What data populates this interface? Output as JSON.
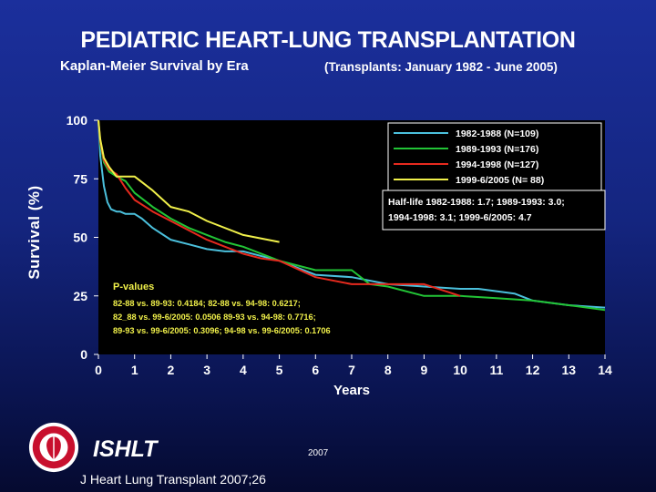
{
  "header": {
    "title": "PEDIATRIC HEART-LUNG TRANSPLANTATION",
    "subtitle": "Kaplan-Meier Survival by Era",
    "subtitle_note": "(Transplants: January 1982 - June 2005)"
  },
  "chart_data": {
    "type": "line",
    "ylabel": "Survival (%)",
    "xlabel": "Years",
    "xlim": [
      0,
      14
    ],
    "ylim": [
      0,
      100
    ],
    "x_ticks": [
      "0",
      "1",
      "2",
      "3",
      "4",
      "5",
      "6",
      "7",
      "8",
      "9",
      "10",
      "11",
      "12",
      "13",
      "14"
    ],
    "y_ticks": [
      {
        "value": 0,
        "label": "0"
      },
      {
        "value": 25,
        "label": "25"
      },
      {
        "value": 50,
        "label": "50"
      },
      {
        "value": 75,
        "label": "75"
      },
      {
        "value": 100,
        "label": "100"
      }
    ],
    "legend_position": "top-right",
    "series": [
      {
        "name": "1982-1988 (N=109)",
        "color": "#4bc0dc",
        "x": [
          0,
          0.05,
          0.15,
          0.25,
          0.35,
          0.5,
          0.6,
          0.75,
          1,
          1.2,
          1.5,
          2,
          2.5,
          3,
          3.5,
          4,
          5,
          6,
          7,
          8,
          9,
          10,
          10.5,
          11,
          11.5,
          12,
          13,
          14
        ],
        "y": [
          100,
          85,
          72,
          65,
          62,
          61,
          61,
          60,
          60,
          58,
          54,
          49,
          47,
          45,
          44,
          44,
          40,
          34,
          33,
          30,
          29,
          28,
          28,
          27,
          26,
          23,
          21,
          20
        ]
      },
      {
        "name": "1989-1993 (N=176)",
        "color": "#22c436",
        "x": [
          0,
          0.05,
          0.15,
          0.3,
          0.5,
          0.75,
          1,
          1.5,
          2,
          2.5,
          3,
          3.5,
          4,
          5,
          6,
          7,
          7.5,
          8,
          9,
          10,
          11,
          12,
          13,
          14
        ],
        "y": [
          100,
          90,
          82,
          78,
          76,
          74,
          69,
          63,
          58,
          54,
          51,
          48,
          46,
          40,
          36,
          36,
          30,
          29,
          25,
          25,
          24,
          23,
          21,
          19
        ]
      },
      {
        "name": "1994-1998 (N=127)",
        "color": "#e62a1e",
        "x": [
          0,
          0.05,
          0.15,
          0.3,
          0.5,
          0.75,
          1,
          1.5,
          2,
          3,
          4,
          4.5,
          5,
          6,
          7,
          8,
          9,
          10
        ],
        "y": [
          100,
          91,
          83,
          79,
          77,
          71,
          66,
          61,
          57,
          49,
          43,
          41,
          40,
          33,
          30,
          30,
          30,
          25
        ]
      },
      {
        "name": "1999-6/2005 (N= 88)",
        "color": "#f0f04a",
        "x": [
          0,
          0.05,
          0.15,
          0.3,
          0.5,
          0.75,
          1,
          1.5,
          2,
          2.5,
          3,
          4,
          5
        ],
        "y": [
          100,
          92,
          84,
          80,
          76,
          76,
          76,
          70,
          63,
          61,
          57,
          51,
          48
        ]
      }
    ],
    "half_life_text": [
      "Half-life 1982-1988: 1.7; 1989-1993: 3.0;",
      "1994-1998: 3.1; 1999-6/2005: 4.7"
    ],
    "pvalues": {
      "title": "P-values",
      "lines": [
        "82-88 vs. 89-93: 0.4184;  82-88 vs. 94-98: 0.6217;",
        "82_88 vs. 99-6/2005: 0.0506 89-93 vs. 94-98: 0.7716;",
        "89-93 vs. 99-6/2005: 0.3096;  94-98 vs. 99-6/2005: 0.1706"
      ]
    }
  },
  "footer": {
    "organization": "ISHLT",
    "year": "2007",
    "citation": "J Heart Lung Transplant 2007;26"
  },
  "colors": {
    "plot_background": "#000000",
    "background_top": "#1b2f9c",
    "background_bottom": "#050a30",
    "pvalue_text": "#f0f04a",
    "logo_red": "#c8102e"
  }
}
